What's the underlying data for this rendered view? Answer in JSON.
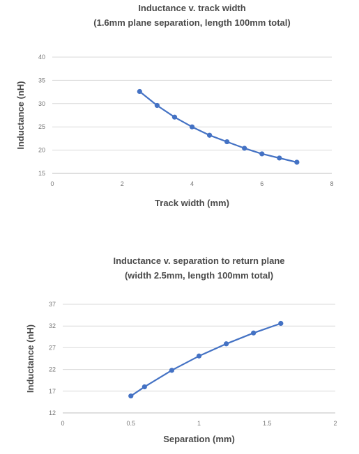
{
  "chart_data": [
    {
      "type": "line",
      "title_lines": [
        "Inductance v. track width",
        "(1.6mm plane separation, length 100mm total)"
      ],
      "xlabel": "Track width (mm)",
      "ylabel": "Inductance (nH)",
      "xlim": [
        0,
        8
      ],
      "ylim": [
        15,
        40
      ],
      "xticks": [
        0,
        2,
        4,
        6,
        8
      ],
      "yticks": [
        15,
        20,
        25,
        30,
        35,
        40
      ],
      "grid": true,
      "color": "#4472c4",
      "series": [
        {
          "x": [
            2.5,
            3.0,
            3.5,
            4.0,
            4.5,
            5.0,
            5.5,
            6.0,
            6.5,
            7.0
          ],
          "y": [
            32.6,
            29.6,
            27.1,
            25.0,
            23.2,
            21.8,
            20.4,
            19.2,
            18.3,
            17.4
          ]
        }
      ]
    },
    {
      "type": "line",
      "title_lines": [
        "Inductance v. separation to return plane",
        "(width 2.5mm, length 100mm total)"
      ],
      "xlabel": "Separation (mm)",
      "ylabel": "Inductance (nH)",
      "xlim": [
        0,
        2
      ],
      "ylim": [
        12,
        37
      ],
      "xticks": [
        0,
        0.5,
        1,
        1.5,
        2
      ],
      "yticks": [
        12,
        17,
        22,
        27,
        32,
        37
      ],
      "grid": true,
      "color": "#4472c4",
      "series": [
        {
          "x": [
            0.5,
            0.6,
            0.8,
            1.0,
            1.2,
            1.4,
            1.6
          ],
          "y": [
            15.9,
            18.0,
            21.8,
            25.1,
            27.9,
            30.4,
            32.6
          ]
        }
      ]
    }
  ]
}
